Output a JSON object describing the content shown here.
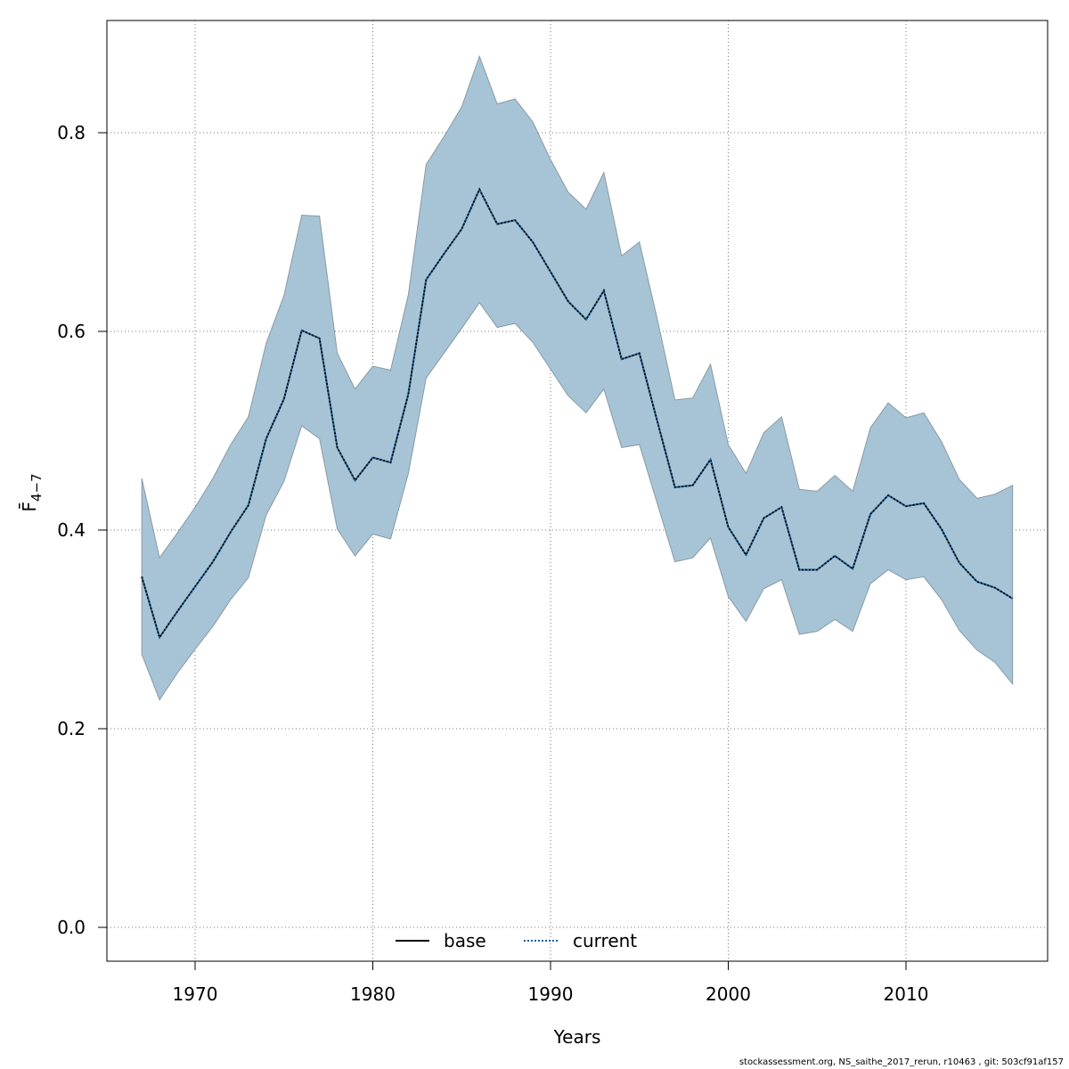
{
  "chart_data": {
    "type": "area",
    "xlabel": "Years",
    "ylabel": "F̄",
    "ylabel_subscript": "4−7",
    "xlim": [
      1965,
      2018
    ],
    "ylim": [
      0,
      0.9
    ],
    "x_ticks": [
      1970,
      1980,
      1990,
      2000,
      2010
    ],
    "y_ticks": [
      "0.0",
      "0.2",
      "0.4",
      "0.6",
      "0.8"
    ],
    "y_tick_values": [
      0,
      0.2,
      0.4,
      0.6,
      0.8
    ],
    "grid": true,
    "legend_position": "bottom-center",
    "colors": {
      "band": "#a6c4d5",
      "band_edge": "#8a9aa4",
      "base": "#000000",
      "current": "#1a5c96"
    },
    "x": [
      1967,
      1968,
      1969,
      1970,
      1971,
      1972,
      1973,
      1974,
      1975,
      1976,
      1977,
      1978,
      1979,
      1980,
      1981,
      1982,
      1983,
      1984,
      1985,
      1986,
      1987,
      1988,
      1989,
      1990,
      1991,
      1992,
      1993,
      1994,
      1995,
      1996,
      1997,
      1998,
      1999,
      2000,
      2001,
      2002,
      2003,
      2004,
      2005,
      2006,
      2007,
      2008,
      2009,
      2010,
      2011,
      2012,
      2013,
      2014,
      2015,
      2016
    ],
    "series": [
      {
        "name": "base",
        "line_style": "solid",
        "values": [
          0.353,
          0.292,
          0.318,
          0.343,
          0.368,
          0.398,
          0.425,
          0.492,
          0.532,
          0.601,
          0.593,
          0.483,
          0.45,
          0.473,
          0.468,
          0.537,
          0.652,
          0.678,
          0.703,
          0.743,
          0.708,
          0.712,
          0.69,
          0.66,
          0.63,
          0.612,
          0.641,
          0.572,
          0.578,
          0.51,
          0.443,
          0.445,
          0.471,
          0.403,
          0.375,
          0.412,
          0.423,
          0.36,
          0.36,
          0.374,
          0.361,
          0.416,
          0.435,
          0.424,
          0.427,
          0.401,
          0.367,
          0.348,
          0.342,
          0.331
        ]
      },
      {
        "name": "current",
        "line_style": "dotted",
        "values": [
          0.353,
          0.292,
          0.318,
          0.343,
          0.368,
          0.398,
          0.425,
          0.492,
          0.532,
          0.601,
          0.593,
          0.483,
          0.45,
          0.473,
          0.468,
          0.537,
          0.652,
          0.678,
          0.703,
          0.743,
          0.708,
          0.712,
          0.69,
          0.66,
          0.63,
          0.612,
          0.641,
          0.572,
          0.578,
          0.51,
          0.443,
          0.445,
          0.471,
          0.403,
          0.375,
          0.412,
          0.423,
          0.36,
          0.36,
          0.374,
          0.361,
          0.416,
          0.435,
          0.424,
          0.427,
          0.401,
          0.367,
          0.348,
          0.342,
          0.331
        ]
      }
    ],
    "band_upper": [
      0.452,
      0.372,
      0.397,
      0.423,
      0.452,
      0.486,
      0.514,
      0.588,
      0.636,
      0.717,
      0.716,
      0.578,
      0.542,
      0.565,
      0.561,
      0.637,
      0.768,
      0.796,
      0.826,
      0.877,
      0.829,
      0.834,
      0.811,
      0.773,
      0.74,
      0.723,
      0.76,
      0.676,
      0.69,
      0.613,
      0.531,
      0.533,
      0.567,
      0.486,
      0.457,
      0.498,
      0.514,
      0.441,
      0.439,
      0.455,
      0.439,
      0.503,
      0.528,
      0.513,
      0.518,
      0.489,
      0.451,
      0.432,
      0.436,
      0.445
    ],
    "band_lower": [
      0.275,
      0.229,
      0.256,
      0.28,
      0.303,
      0.33,
      0.352,
      0.415,
      0.449,
      0.505,
      0.492,
      0.401,
      0.374,
      0.396,
      0.391,
      0.457,
      0.553,
      0.578,
      0.603,
      0.629,
      0.604,
      0.608,
      0.589,
      0.562,
      0.535,
      0.518,
      0.542,
      0.483,
      0.486,
      0.427,
      0.368,
      0.372,
      0.392,
      0.333,
      0.308,
      0.341,
      0.35,
      0.295,
      0.298,
      0.31,
      0.298,
      0.346,
      0.36,
      0.35,
      0.353,
      0.33,
      0.299,
      0.279,
      0.267,
      0.245
    ]
  },
  "footer": {
    "text": "stockassessment.org, NS_saithe_2017_rerun, r10463 , git: 503cf91af157"
  }
}
